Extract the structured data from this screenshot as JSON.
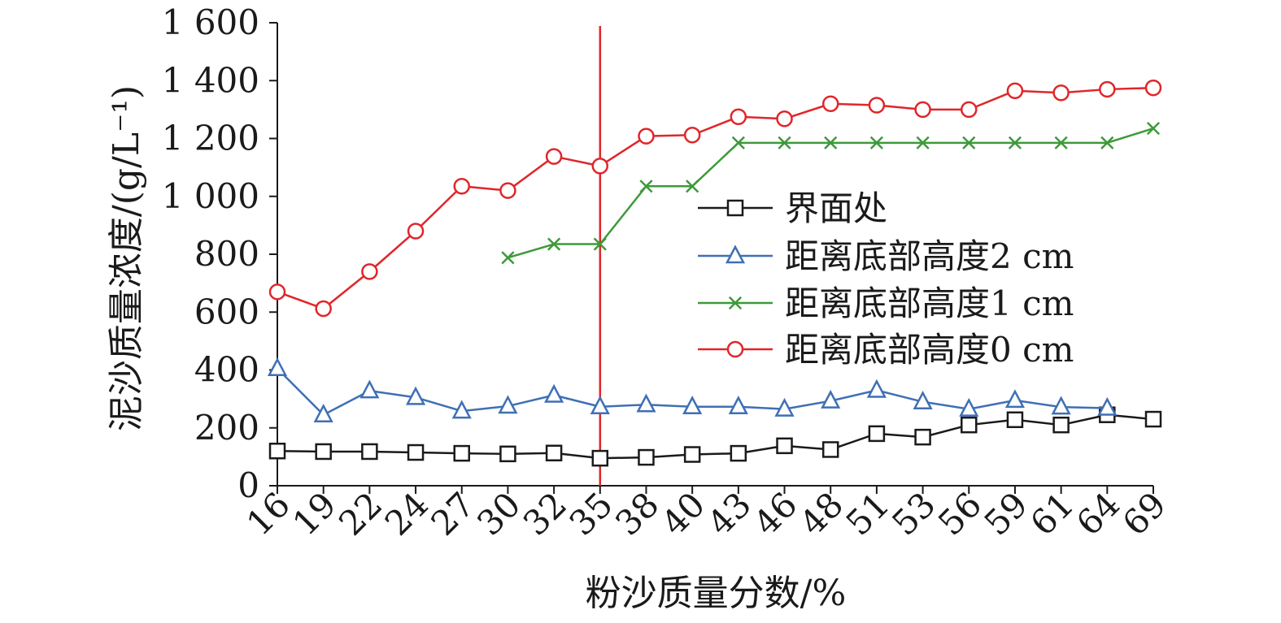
{
  "chart_data": {
    "type": "line",
    "title": "",
    "xlabel": "粉沙质量分数/%",
    "ylabel": "泥沙质量浓度/(g/L⁻¹)",
    "categories": [
      "16",
      "19",
      "22",
      "24",
      "27",
      "30",
      "32",
      "35",
      "38",
      "40",
      "43",
      "46",
      "48",
      "51",
      "53",
      "56",
      "59",
      "61",
      "64",
      "69"
    ],
    "ylim": [
      0,
      1600
    ],
    "yticks": [
      {
        "value": 0,
        "label": "0"
      },
      {
        "value": 200,
        "label": "200"
      },
      {
        "value": 400,
        "label": "400"
      },
      {
        "value": 600,
        "label": "600"
      },
      {
        "value": 800,
        "label": "800"
      },
      {
        "value": 1000,
        "label": "1 000"
      },
      {
        "value": 1200,
        "label": "1 200"
      },
      {
        "value": 1400,
        "label": "1 400"
      },
      {
        "value": 1600,
        "label": "1 600"
      }
    ],
    "grid": false,
    "legend_position": "right-center",
    "reference_line": {
      "x_category": "35",
      "color": "#e0262a"
    },
    "series": [
      {
        "name": "界面处",
        "color": "#1a1a1a",
        "marker": "square",
        "values": [
          120,
          118,
          118,
          115,
          112,
          110,
          113,
          95,
          98,
          108,
          112,
          138,
          125,
          180,
          168,
          210,
          228,
          210,
          245,
          230
        ]
      },
      {
        "name": "距离底部高度2 cm",
        "color": "#3f6fb5",
        "marker": "triangle",
        "values": [
          405,
          245,
          328,
          305,
          258,
          275,
          313,
          273,
          280,
          273,
          273,
          265,
          293,
          330,
          290,
          265,
          295,
          272,
          268,
          null
        ]
      },
      {
        "name": "距离底部高度1 cm",
        "color": "#3d9a3a",
        "marker": "x",
        "values": [
          null,
          null,
          null,
          null,
          null,
          788,
          835,
          835,
          1035,
          1035,
          1185,
          1185,
          1185,
          1185,
          1185,
          1185,
          1185,
          1185,
          1185,
          1235
        ]
      },
      {
        "name": "距离底部高度0 cm",
        "color": "#e0262a",
        "marker": "circle",
        "values": [
          670,
          612,
          740,
          880,
          1035,
          1020,
          1138,
          1105,
          1208,
          1212,
          1275,
          1268,
          1320,
          1315,
          1300,
          1300,
          1365,
          1358,
          1370,
          1375
        ]
      }
    ]
  }
}
